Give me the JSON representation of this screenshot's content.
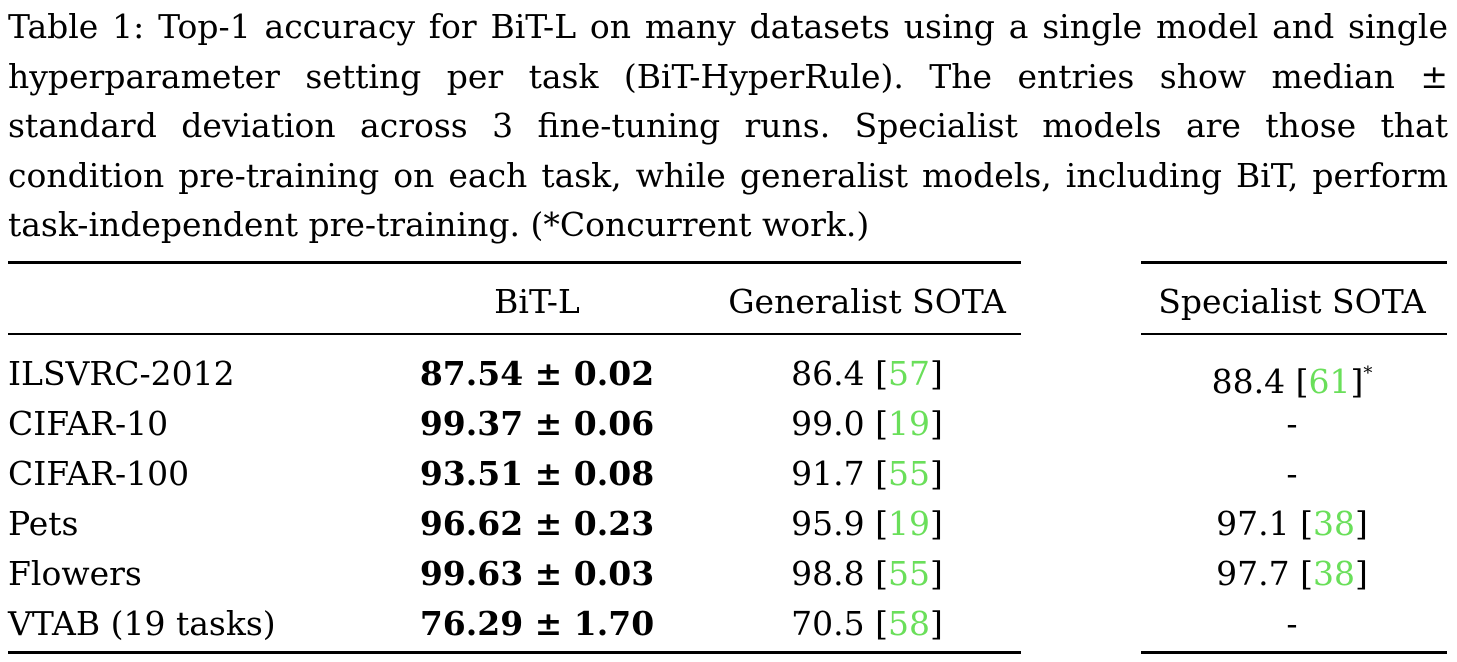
{
  "caption": {
    "label": "Table 1:",
    "text": "Top-1 accuracy for BiT-L on many datasets using a single model and single hyperparameter setting per task (BiT-HyperRule). The entries show median ± standard deviation across 3 fine-tuning runs. Specialist models are those that condition pre-training on each task, while generalist models, including BiT, perform task-independent pre-training. (*Concurrent work.)"
  },
  "columns": [
    "",
    "BiT-L",
    "Generalist SOTA",
    "Specialist SOTA"
  ],
  "rows": [
    {
      "dataset": "ILSVRC-2012",
      "bit_l": "87.54 ± 0.02",
      "gen_value": "86.4",
      "gen_ref": "57",
      "spec_value": "88.4",
      "spec_ref": "61",
      "spec_star": "*",
      "spec_dash": ""
    },
    {
      "dataset": "CIFAR-10",
      "bit_l": "99.37 ± 0.06",
      "gen_value": "99.0",
      "gen_ref": "19",
      "spec_value": "",
      "spec_ref": "",
      "spec_star": "",
      "spec_dash": "-"
    },
    {
      "dataset": "CIFAR-100",
      "bit_l": "93.51 ± 0.08",
      "gen_value": "91.7",
      "gen_ref": "55",
      "spec_value": "",
      "spec_ref": "",
      "spec_star": "",
      "spec_dash": "-"
    },
    {
      "dataset": "Pets",
      "bit_l": "96.62 ± 0.23",
      "gen_value": "95.9",
      "gen_ref": "19",
      "spec_value": "97.1",
      "spec_ref": "38",
      "spec_star": "",
      "spec_dash": ""
    },
    {
      "dataset": "Flowers",
      "bit_l": "99.63 ± 0.03",
      "gen_value": "98.8",
      "gen_ref": "55",
      "spec_value": "97.7",
      "spec_ref": "38",
      "spec_star": "",
      "spec_dash": ""
    },
    {
      "dataset": "VTAB (19 tasks)",
      "bit_l": "76.29 ± 1.70",
      "gen_value": "70.5",
      "gen_ref": "58",
      "spec_value": "",
      "spec_ref": "",
      "spec_star": "",
      "spec_dash": "-"
    }
  ],
  "colors": {
    "citation": "#6adf5a",
    "text": "#000000"
  }
}
